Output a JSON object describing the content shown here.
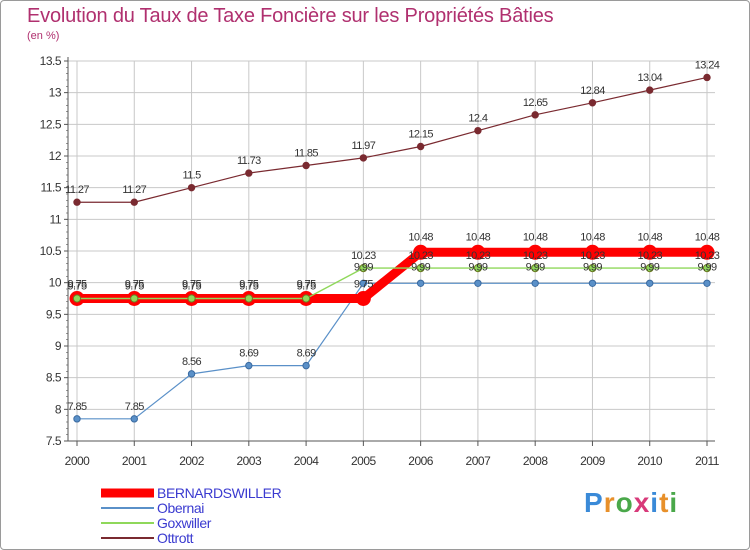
{
  "header": {
    "title": "Evolution du Taux de Taxe Foncière sur les Propriétés Bâties",
    "unit": "(en %)"
  },
  "brand": {
    "name": "Proxiti"
  },
  "colors": {
    "title": "#b0306f",
    "grid": "#c8c8c8",
    "axis": "#555555",
    "label": "#333333",
    "bernardswiller": "#ff0000",
    "obernai": "#5a90c8",
    "goxwiller": "#8fd85a",
    "ottrott": "#7a2a30"
  },
  "chart_data": {
    "type": "line",
    "title": "Evolution du Taux de Taxe Foncière sur les Propriétés Bâties",
    "ylabel": "(en %)",
    "xlabel": "",
    "x": [
      "2000",
      "2001",
      "2002",
      "2003",
      "2004",
      "2005",
      "2006",
      "2007",
      "2008",
      "2009",
      "2010",
      "2011"
    ],
    "ylim": [
      7.5,
      13.5
    ],
    "yticks": [
      "7.5",
      "8",
      "8.5",
      "9",
      "9.5",
      "10",
      "10.5",
      "11",
      "11.5",
      "12",
      "12.5",
      "13",
      "13.5"
    ],
    "grid": true,
    "legend_position": "bottom-left",
    "series": [
      {
        "key": "bernardswiller",
        "name": "BERNARDSWILLER",
        "values": [
          9.75,
          9.75,
          9.75,
          9.75,
          9.75,
          9.75,
          10.48,
          10.48,
          10.48,
          10.48,
          10.48,
          10.48
        ],
        "labels": [
          "9.75",
          "9.75",
          "9.75",
          "9.75",
          "9.75",
          "9.75",
          "10.48",
          "10.48",
          "10.48",
          "10.48",
          "10.48",
          "10.48"
        ]
      },
      {
        "key": "obernai",
        "name": "Obernai",
        "values": [
          7.85,
          7.85,
          8.56,
          8.69,
          8.69,
          9.99,
          9.99,
          9.99,
          9.99,
          9.99,
          9.99,
          9.99
        ],
        "labels": [
          "7.85",
          "7.85",
          "8.56",
          "8.69",
          "8.69",
          "9.99",
          "9.99",
          "9.99",
          "9.99",
          "9.99",
          "9.99",
          "9.99"
        ]
      },
      {
        "key": "goxwiller",
        "name": "Goxwiller",
        "values": [
          9.75,
          9.75,
          9.75,
          9.75,
          9.75,
          10.23,
          10.23,
          10.23,
          10.23,
          10.23,
          10.23,
          10.23
        ],
        "labels": [
          "9.75",
          "9.75",
          "9.75",
          "9.75",
          "9.75",
          "10.23",
          "10.23",
          "10.23",
          "10.23",
          "10.23",
          "10.23",
          "10.23"
        ]
      },
      {
        "key": "ottrott",
        "name": "Ottrott",
        "values": [
          11.27,
          11.27,
          11.5,
          11.73,
          11.85,
          11.97,
          12.15,
          12.4,
          12.65,
          12.84,
          13.04,
          13.24
        ],
        "labels": [
          "11.27",
          "11.27",
          "11.5",
          "11.73",
          "11.85",
          "11.97",
          "12.15",
          "12.4",
          "12.65",
          "12.84",
          "13.04",
          "13.24"
        ]
      }
    ]
  }
}
